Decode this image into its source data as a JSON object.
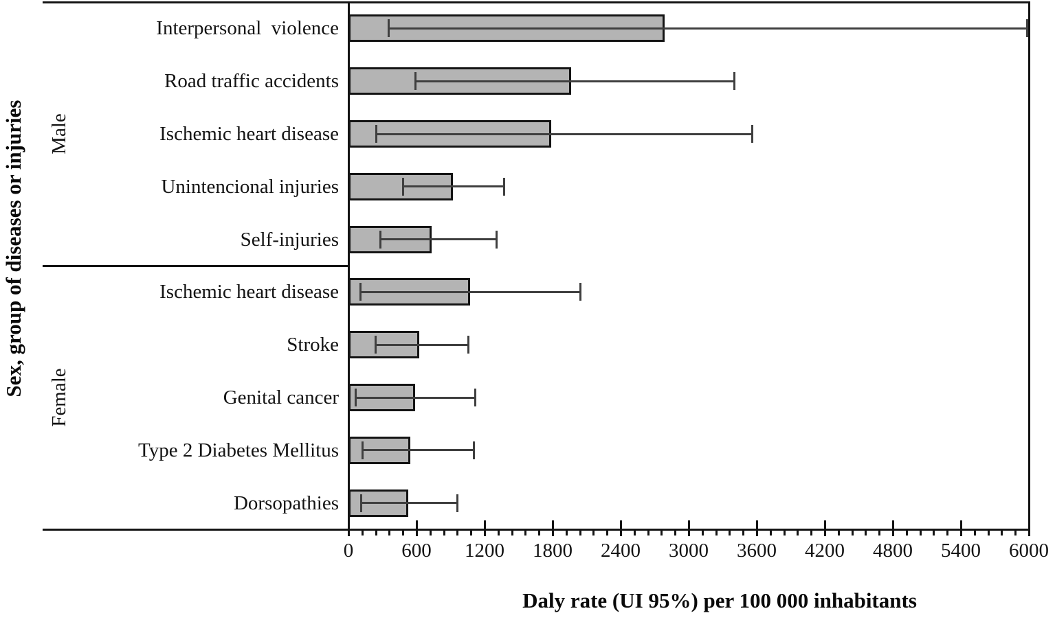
{
  "chart_data": {
    "type": "bar",
    "orientation": "horizontal",
    "xlabel": "Daly rate (UI 95%) per 100 000 inhabitants",
    "ylabel": "Sex, group of diseases or injuries",
    "xlim": [
      0,
      6000
    ],
    "x_major_tick_step": 600,
    "x_minor_tick_step": 120,
    "x_tick_labels": [
      "0",
      "600",
      "1200",
      "1800",
      "2400",
      "3000",
      "3600",
      "4200",
      "4800",
      "5400",
      "6000"
    ],
    "grid": false,
    "legend": false,
    "error_bars": "95% uncertainty interval (UI)",
    "groups": [
      {
        "label": "Male",
        "items": [
          {
            "label": "Interpersonal  violence",
            "value": 2790,
            "ci_low": 350,
            "ci_high": 5980
          },
          {
            "label": "Road traffic accidents",
            "value": 1965,
            "ci_low": 585,
            "ci_high": 3400
          },
          {
            "label": "Ischemic heart disease",
            "value": 1790,
            "ci_low": 240,
            "ci_high": 3560
          },
          {
            "label": "Unintencional injuries",
            "value": 920,
            "ci_low": 480,
            "ci_high": 1370
          },
          {
            "label": "Self-injuries",
            "value": 735,
            "ci_low": 280,
            "ci_high": 1300
          }
        ]
      },
      {
        "label": "Female",
        "items": [
          {
            "label": "Ischemic heart disease",
            "value": 1070,
            "ci_low": 105,
            "ci_high": 2040
          },
          {
            "label": "Stroke",
            "value": 625,
            "ci_low": 235,
            "ci_high": 1055
          },
          {
            "label": "Genital cancer",
            "value": 585,
            "ci_low": 60,
            "ci_high": 1115
          },
          {
            "label": "Type 2 Diabetes Mellitus",
            "value": 545,
            "ci_low": 120,
            "ci_high": 1105
          },
          {
            "label": "Dorsopathies",
            "value": 525,
            "ci_low": 110,
            "ci_high": 955
          }
        ]
      }
    ],
    "colors": {
      "bar_fill": "#b4b4b4",
      "bar_border": "#141414",
      "error_bar": "#3f3f3f",
      "axis": "#141414",
      "text": "#141414"
    }
  }
}
